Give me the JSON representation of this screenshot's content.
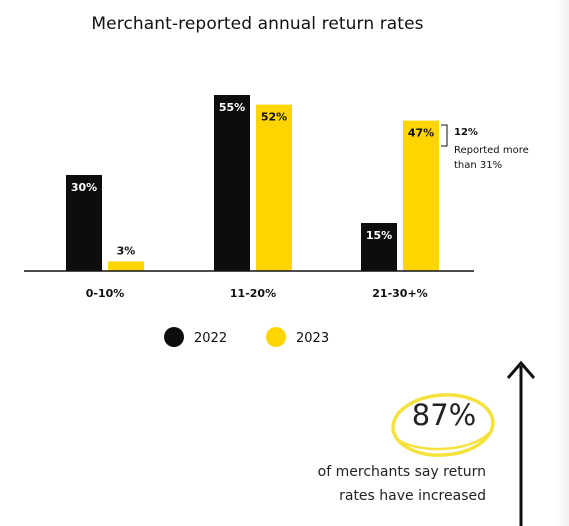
{
  "chart_data": {
    "type": "bar",
    "title": "Merchant-reported annual return rates",
    "categories": [
      "0-10%",
      "11-20%",
      "21-30+%"
    ],
    "series": [
      {
        "name": "2022",
        "values": [
          30,
          55,
          15
        ],
        "labels": [
          "30%",
          "55%",
          "15%"
        ],
        "color": "#0d0d0d",
        "label_color": "#ffffff"
      },
      {
        "name": "2023",
        "values": [
          3,
          52,
          47
        ],
        "labels": [
          "3%",
          "52%",
          "47%"
        ],
        "color": "#ffd500",
        "label_color": "#111111"
      }
    ],
    "ylim": [
      0,
      60
    ],
    "grid": false,
    "legend": "bottom-center",
    "annotation": {
      "percent": "12%",
      "line1": "Reported more",
      "line2": "than 31%"
    }
  },
  "callout": {
    "stat": "87%",
    "caption_line1": "of merchants say return",
    "caption_line2": "rates have increased"
  }
}
